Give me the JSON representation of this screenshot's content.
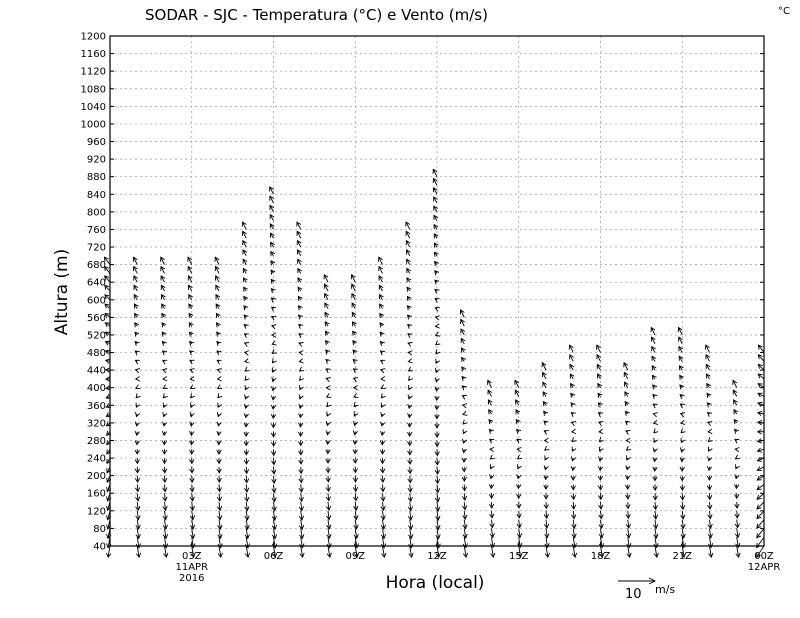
{
  "chart_data": {
    "type": "vector",
    "title": "SODAR - SJC - Temperatura (°C) e Vento (m/s)",
    "unit_label": "°C",
    "xlabel": "Hora (local)",
    "ylabel": "Altura (m)",
    "x_range_hours": [
      0,
      24
    ],
    "ylim": [
      40,
      1200
    ],
    "y_ticks": [
      40,
      80,
      120,
      160,
      200,
      240,
      280,
      320,
      360,
      400,
      440,
      480,
      520,
      560,
      600,
      640,
      680,
      720,
      760,
      800,
      840,
      880,
      920,
      960,
      1000,
      1040,
      1080,
      1120,
      1160,
      1200
    ],
    "x_ticks": [
      {
        "hour": 3,
        "label": "03Z",
        "date": "11APR",
        "year": "2016"
      },
      {
        "hour": 6,
        "label": "06Z"
      },
      {
        "hour": 9,
        "label": "09Z"
      },
      {
        "hour": 12,
        "label": "12Z"
      },
      {
        "hour": 15,
        "label": "15Z"
      },
      {
        "hour": 18,
        "label": "18Z"
      },
      {
        "hour": 21,
        "label": "21Z"
      },
      {
        "hour": 24,
        "label": "00Z",
        "date": "12APR"
      }
    ],
    "grid": true,
    "reference_vector": {
      "value": 10,
      "value_label": "10",
      "unit": "m/s"
    },
    "profiles": [
      {
        "hour": 0.0,
        "top": 680,
        "u0": -0.5,
        "u1": -1.5,
        "v0": -3.0,
        "v1": 2.0
      },
      {
        "hour": 1.0,
        "top": 680,
        "u0": 0.5,
        "u1": -1.0,
        "v0": -3.0,
        "v1": 2.0
      },
      {
        "hour": 2.0,
        "top": 680,
        "u0": 0.5,
        "u1": -1.0,
        "v0": -3.0,
        "v1": 2.0
      },
      {
        "hour": 3.0,
        "top": 680,
        "u0": 0.5,
        "u1": -1.0,
        "v0": -3.0,
        "v1": 2.0
      },
      {
        "hour": 4.0,
        "top": 680,
        "u0": 0.5,
        "u1": -1.0,
        "v0": -3.0,
        "v1": 2.0
      },
      {
        "hour": 5.0,
        "top": 760,
        "u0": 0.5,
        "u1": -1.0,
        "v0": -3.0,
        "v1": 2.0
      },
      {
        "hour": 6.0,
        "top": 840,
        "u0": 0.5,
        "u1": -1.0,
        "v0": -3.0,
        "v1": 2.0
      },
      {
        "hour": 7.0,
        "top": 760,
        "u0": 0.5,
        "u1": -1.0,
        "v0": -3.0,
        "v1": 2.0
      },
      {
        "hour": 8.0,
        "top": 640,
        "u0": 0.5,
        "u1": -1.0,
        "v0": -3.0,
        "v1": 2.0
      },
      {
        "hour": 9.0,
        "top": 640,
        "u0": 0.5,
        "u1": -1.0,
        "v0": -3.0,
        "v1": 2.0
      },
      {
        "hour": 10.0,
        "top": 680,
        "u0": 0.5,
        "u1": -1.0,
        "v0": -3.0,
        "v1": 2.0
      },
      {
        "hour": 11.0,
        "top": 760,
        "u0": 0.5,
        "u1": -1.0,
        "v0": -3.0,
        "v1": 2.0
      },
      {
        "hour": 12.0,
        "top": 880,
        "u0": 0.5,
        "u1": -1.0,
        "v0": -3.0,
        "v1": 2.0
      },
      {
        "hour": 13.0,
        "top": 560,
        "u0": 0.5,
        "u1": -1.0,
        "v0": -3.0,
        "v1": 2.0
      },
      {
        "hour": 14.0,
        "top": 400,
        "u0": 0.5,
        "u1": -1.0,
        "v0": -3.0,
        "v1": 2.0
      },
      {
        "hour": 15.0,
        "top": 400,
        "u0": 0.5,
        "u1": -1.0,
        "v0": -3.0,
        "v1": 2.0
      },
      {
        "hour": 16.0,
        "top": 440,
        "u0": 0.5,
        "u1": -1.0,
        "v0": -3.0,
        "v1": 2.0
      },
      {
        "hour": 17.0,
        "top": 480,
        "u0": 0.5,
        "u1": -1.0,
        "v0": -3.0,
        "v1": 2.0
      },
      {
        "hour": 18.0,
        "top": 480,
        "u0": 0.5,
        "u1": -1.0,
        "v0": -3.0,
        "v1": 2.0
      },
      {
        "hour": 19.0,
        "top": 440,
        "u0": 0.5,
        "u1": -1.0,
        "v0": -3.0,
        "v1": 2.0
      },
      {
        "hour": 20.0,
        "top": 520,
        "u0": 0.5,
        "u1": -1.0,
        "v0": -3.0,
        "v1": 2.0
      },
      {
        "hour": 21.0,
        "top": 520,
        "u0": 0.5,
        "u1": -1.0,
        "v0": -3.0,
        "v1": 2.0
      },
      {
        "hour": 22.0,
        "top": 480,
        "u0": 0.5,
        "u1": -1.0,
        "v0": -3.0,
        "v1": 2.0
      },
      {
        "hour": 23.0,
        "top": 400,
        "u0": 0.5,
        "u1": -1.0,
        "v0": -3.0,
        "v1": 2.0
      },
      {
        "hour": 24.0,
        "top": 480,
        "u0": -2.0,
        "u1": -1.5,
        "v0": -3.0,
        "v1": 2.0
      }
    ]
  }
}
